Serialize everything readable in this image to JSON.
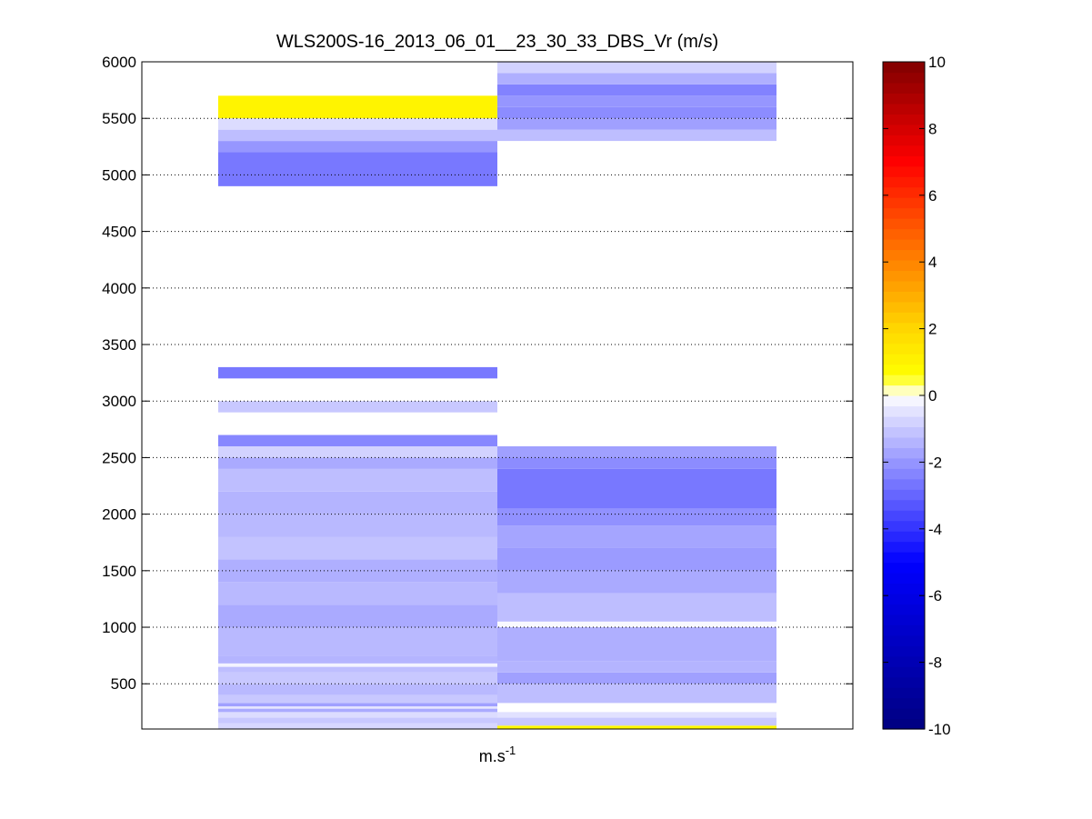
{
  "chart_data": {
    "type": "heatmap",
    "title": "WLS200S-16_2013_06_01__23_30_33_DBS_Vr (m/s)",
    "xlabel_base": "m.s",
    "xlabel_exp": "-1",
    "ylabel": "",
    "ylim": [
      100,
      6000
    ],
    "yticks": [
      500,
      1000,
      1500,
      2000,
      2500,
      3000,
      3500,
      4000,
      4500,
      5000,
      5500,
      6000
    ],
    "grid": "horizontal dotted",
    "colorbar": {
      "clim": [
        -10,
        10
      ],
      "ticks": [
        10,
        8,
        6,
        4,
        2,
        0,
        -2,
        -4,
        -6,
        -8,
        -10
      ],
      "colormap": "blue-white-red (yellow near 1)"
    },
    "columns": [
      {
        "segments": [
          {
            "y0": 4900,
            "y1": 5200,
            "v": -2.6
          },
          {
            "y0": 5200,
            "y1": 5300,
            "v": -2.0
          },
          {
            "y0": 5300,
            "y1": 5400,
            "v": -1.2
          },
          {
            "y0": 5400,
            "y1": 5500,
            "v": -0.6
          },
          {
            "y0": 5500,
            "y1": 5700,
            "v": 1.0
          },
          {
            "y0": 3200,
            "y1": 3300,
            "v": -2.6
          },
          {
            "y0": 2900,
            "y1": 3000,
            "v": -1.0
          },
          {
            "y0": 100,
            "y1": 150,
            "v": -0.7
          },
          {
            "y0": 150,
            "y1": 200,
            "v": -1.0
          },
          {
            "y0": 200,
            "y1": 250,
            "v": -0.6
          },
          {
            "y0": 250,
            "y1": 280,
            "v": -1.6
          },
          {
            "y0": 280,
            "y1": 300,
            "v": -0.4
          },
          {
            "y0": 300,
            "y1": 330,
            "v": -1.8
          },
          {
            "y0": 330,
            "y1": 400,
            "v": -1.0
          },
          {
            "y0": 400,
            "y1": 500,
            "v": -1.3
          },
          {
            "y0": 500,
            "y1": 600,
            "v": -1.0
          },
          {
            "y0": 600,
            "y1": 650,
            "v": -1.2
          },
          {
            "y0": 650,
            "y1": 680,
            "v": -0.2
          },
          {
            "y0": 680,
            "y1": 750,
            "v": -1.4
          },
          {
            "y0": 750,
            "y1": 1000,
            "v": -1.3
          },
          {
            "y0": 1000,
            "y1": 1200,
            "v": -1.6
          },
          {
            "y0": 1200,
            "y1": 1400,
            "v": -1.3
          },
          {
            "y0": 1400,
            "y1": 1600,
            "v": -1.5
          },
          {
            "y0": 1600,
            "y1": 1800,
            "v": -1.1
          },
          {
            "y0": 1800,
            "y1": 2000,
            "v": -1.3
          },
          {
            "y0": 2000,
            "y1": 2200,
            "v": -1.4
          },
          {
            "y0": 2200,
            "y1": 2400,
            "v": -1.2
          },
          {
            "y0": 2400,
            "y1": 2500,
            "v": -1.6
          },
          {
            "y0": 2500,
            "y1": 2600,
            "v": -0.8
          },
          {
            "y0": 2600,
            "y1": 2700,
            "v": -2.3
          }
        ]
      },
      {
        "segments": [
          {
            "y0": 5300,
            "y1": 5400,
            "v": -1.2
          },
          {
            "y0": 5400,
            "y1": 5500,
            "v": -1.8
          },
          {
            "y0": 5500,
            "y1": 5600,
            "v": -2.2
          },
          {
            "y0": 5600,
            "y1": 5700,
            "v": -2.0
          },
          {
            "y0": 5700,
            "y1": 5800,
            "v": -2.4
          },
          {
            "y0": 5800,
            "y1": 5900,
            "v": -1.5
          },
          {
            "y0": 5900,
            "y1": 6000,
            "v": -0.8
          },
          {
            "y0": 100,
            "y1": 130,
            "v": 0.8
          },
          {
            "y0": 130,
            "y1": 200,
            "v": -1.0
          },
          {
            "y0": 200,
            "y1": 250,
            "v": -0.5
          },
          {
            "y0": 330,
            "y1": 500,
            "v": -1.2
          },
          {
            "y0": 500,
            "y1": 600,
            "v": -1.8
          },
          {
            "y0": 600,
            "y1": 700,
            "v": -1.4
          },
          {
            "y0": 700,
            "y1": 1000,
            "v": -1.5
          },
          {
            "y0": 1000,
            "y1": 1050,
            "v": -0.1
          },
          {
            "y0": 1050,
            "y1": 1300,
            "v": -1.2
          },
          {
            "y0": 1300,
            "y1": 1500,
            "v": -1.6
          },
          {
            "y0": 1500,
            "y1": 1700,
            "v": -1.9
          },
          {
            "y0": 1700,
            "y1": 1900,
            "v": -1.7
          },
          {
            "y0": 1900,
            "y1": 2050,
            "v": -2.1
          },
          {
            "y0": 2050,
            "y1": 2400,
            "v": -2.6
          },
          {
            "y0": 2400,
            "y1": 2500,
            "v": -2.2
          },
          {
            "y0": 2500,
            "y1": 2600,
            "v": -1.8
          }
        ]
      }
    ]
  }
}
